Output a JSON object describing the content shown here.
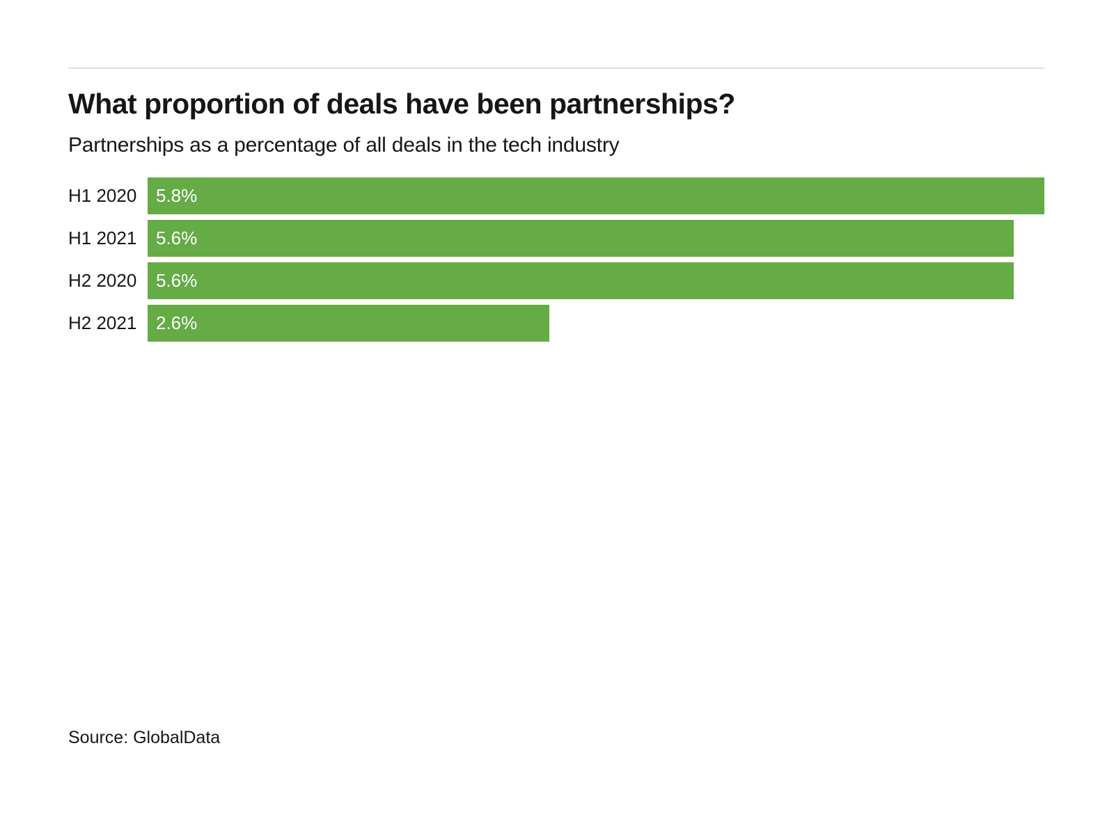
{
  "header": {
    "title": "What proportion of deals have been partnerships?",
    "subtitle": "Partnerships as a percentage of all deals in the tech industry"
  },
  "chart_data": {
    "type": "bar",
    "orientation": "horizontal",
    "title": "What proportion of deals have been partnerships?",
    "subtitle": "Partnerships as a percentage of all deals in the tech industry",
    "categories": [
      "H1 2020",
      "H1 2021",
      "H2 2020",
      "H2 2021"
    ],
    "values": [
      5.8,
      5.6,
      5.6,
      2.6
    ],
    "value_labels": [
      "5.8%",
      "5.6%",
      "5.6%",
      "2.6%"
    ],
    "xlabel": "",
    "ylabel": "",
    "xlim": [
      0,
      5.8
    ],
    "grid": false,
    "legend": false,
    "bar_color": "#65ab46",
    "value_label_color": "#ffffff"
  },
  "footer": {
    "source": "Source: GlobalData"
  }
}
